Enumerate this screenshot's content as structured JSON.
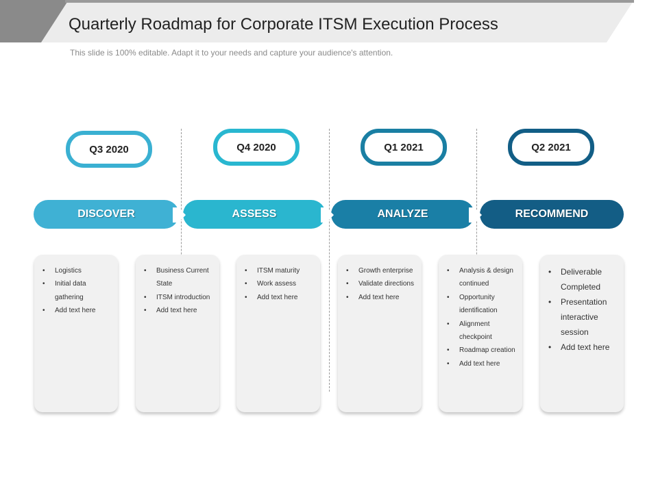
{
  "header": {
    "title": "Quarterly Roadmap for Corporate ITSM Execution Process",
    "subtitle": "This slide is 100% editable. Adapt it to your needs and capture your audience's attention."
  },
  "quarters": [
    {
      "label": "Q3 2020",
      "color": "#3ab0d2"
    },
    {
      "label": "Q4 2020",
      "color": "#29b7d0"
    },
    {
      "label": "Q1 2021",
      "color": "#1a7fa3"
    },
    {
      "label": "Q2 2021",
      "color": "#125e86"
    }
  ],
  "phases": [
    {
      "label": "DISCOVER",
      "color": "#3fb1d4"
    },
    {
      "label": "ASSESS",
      "color": "#2ab6cf"
    },
    {
      "label": "ANALYZE",
      "color": "#1a7fa6"
    },
    {
      "label": "RECOMMEND",
      "color": "#135d85"
    }
  ],
  "cards": [
    [
      "Logistics",
      "Initial data gathering",
      "Add text here"
    ],
    [
      "Business Current State",
      "ITSM introduction",
      "Add text here"
    ],
    [
      "ITSM maturity",
      "Work assess",
      "Add text here"
    ],
    [
      "Growth enterprise",
      "Validate directions",
      "Add text here"
    ],
    [
      "Analysis & design continued",
      "Opportunity identification",
      "Alignment checkpoint",
      "Roadmap creation",
      "Add text here"
    ],
    [
      "Deliverable Completed",
      "Presentation interactive session",
      "Add text here"
    ]
  ]
}
